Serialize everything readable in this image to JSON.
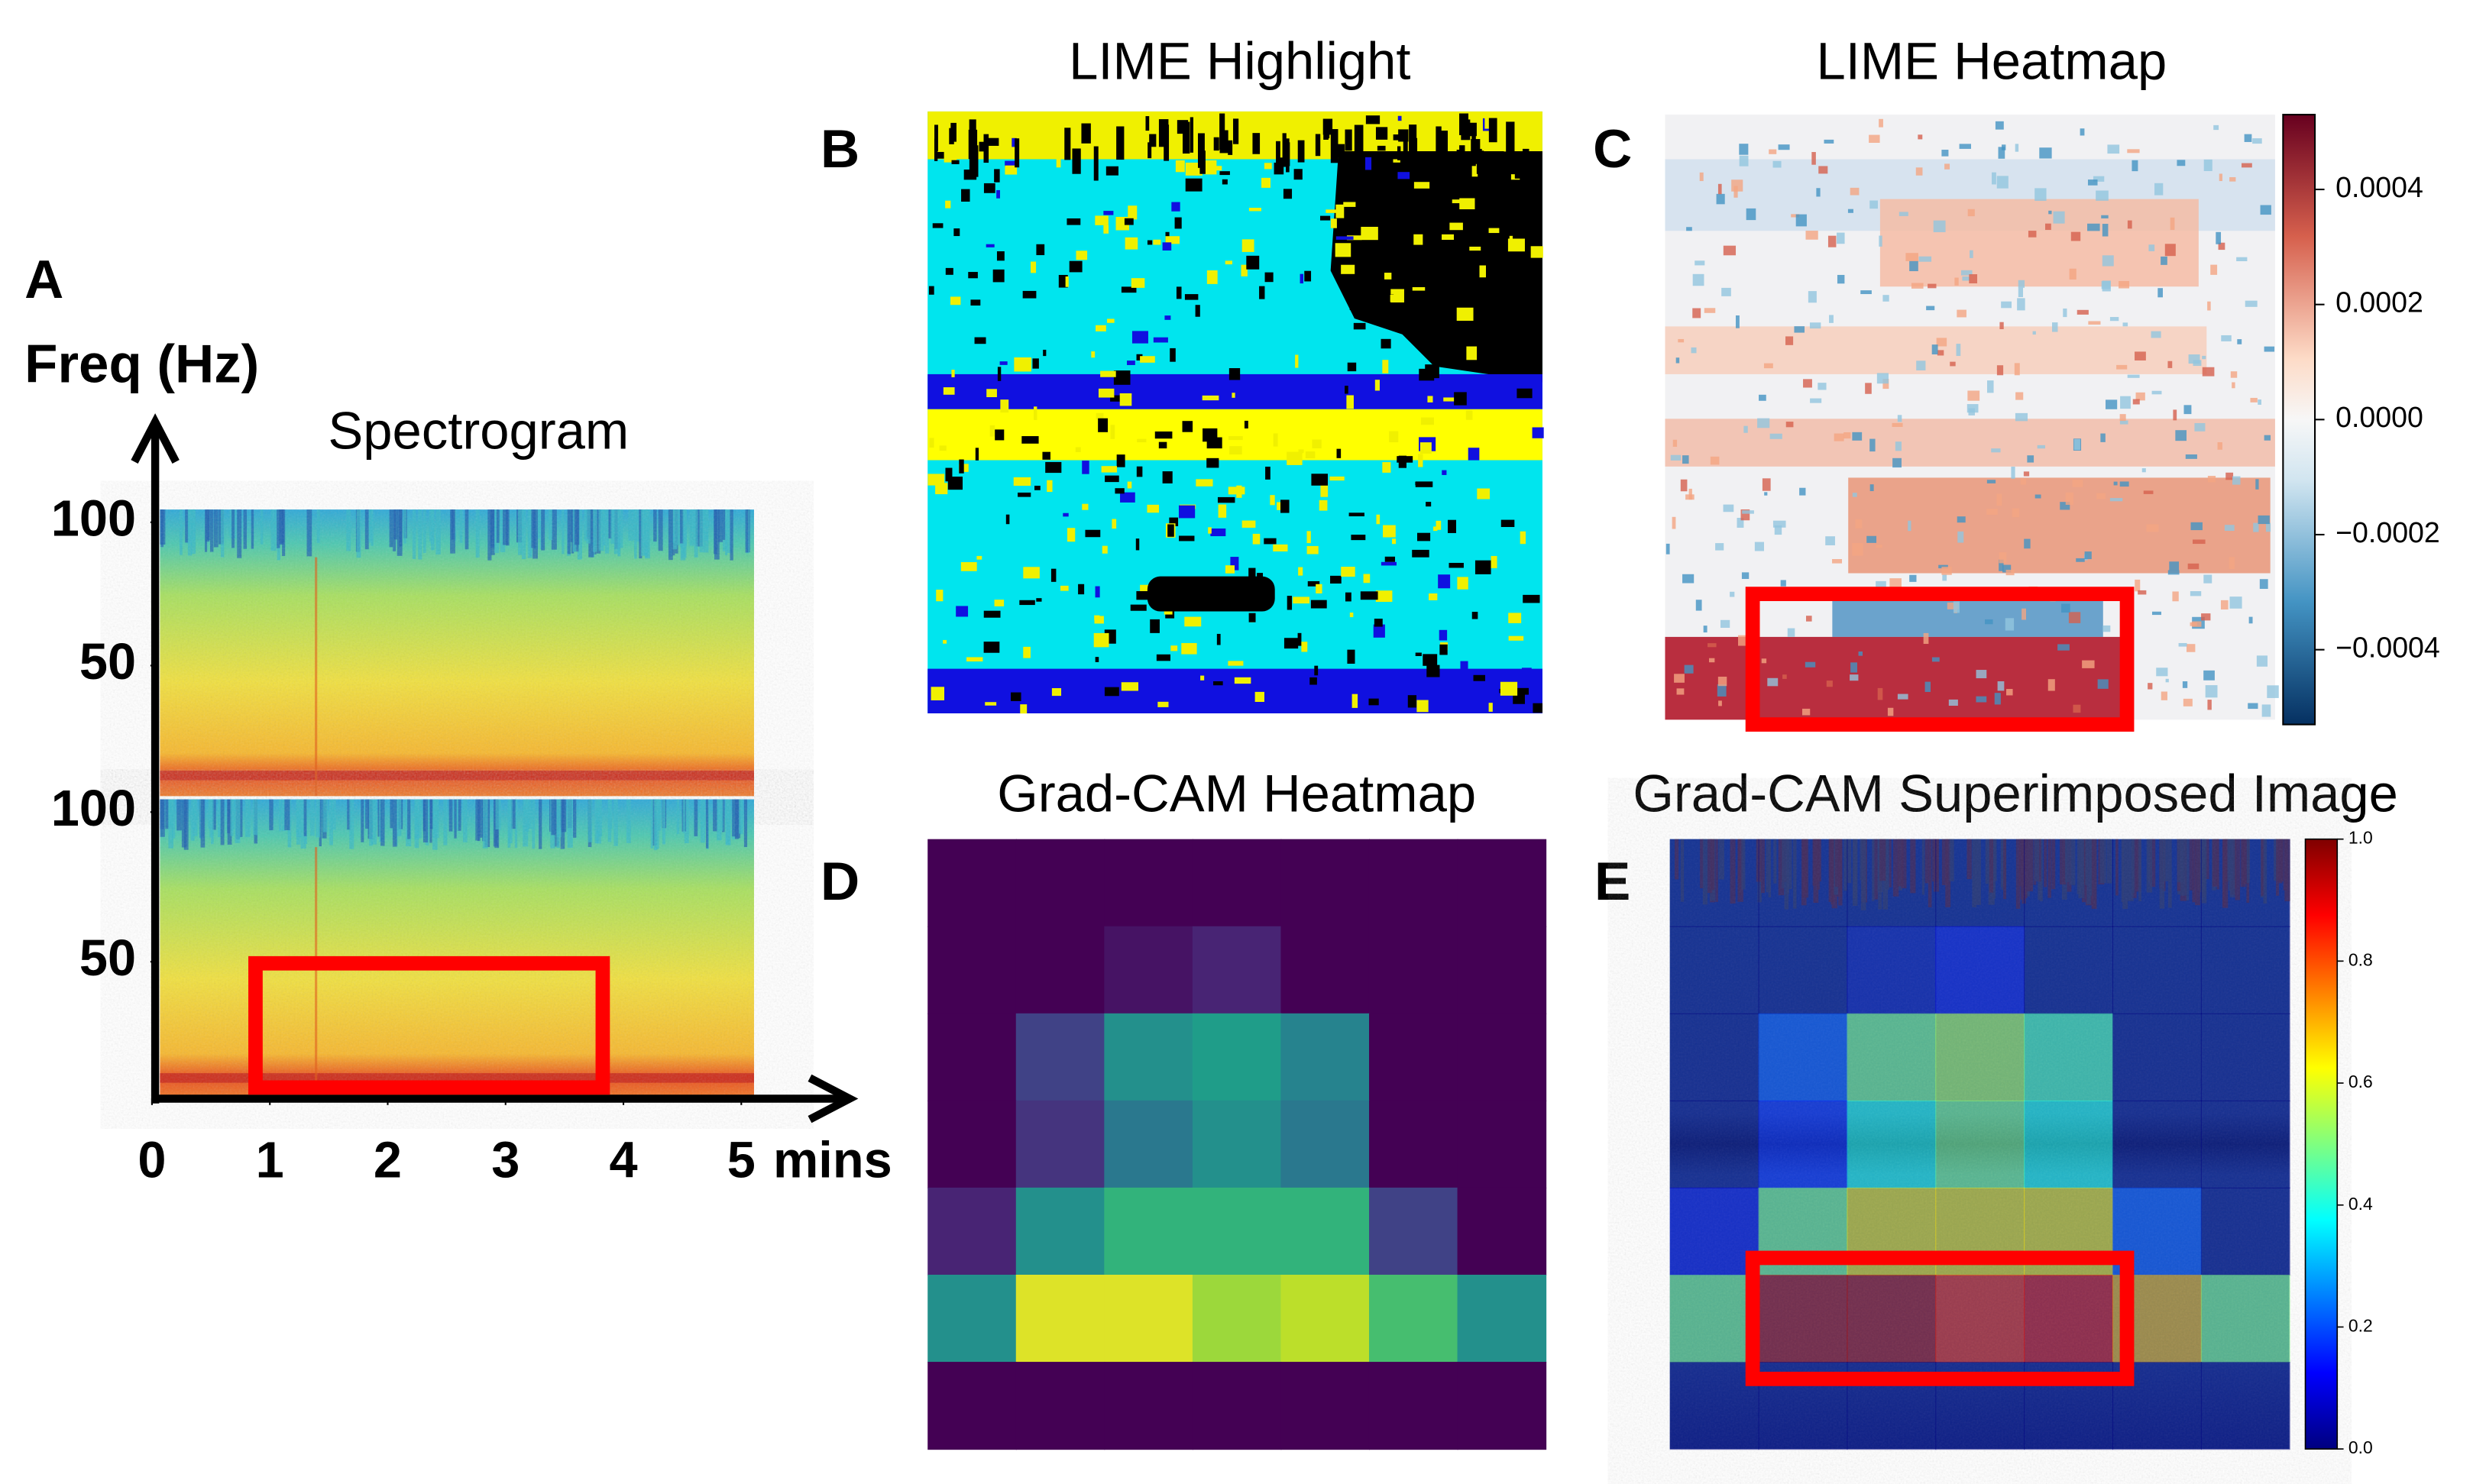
{
  "panels": [
    {
      "label": "A",
      "title": "Spectrogram",
      "y_label": "Freq (Hz)",
      "ylim": [
        0,
        100
      ],
      "yticks_upper": [
        100,
        50
      ],
      "yticks_lower": [
        100,
        50
      ],
      "xlim": [
        0,
        5
      ],
      "xticks": [
        0,
        1,
        2,
        3,
        4,
        5
      ],
      "x_unit": "mins"
    },
    {
      "label": "B",
      "title": "LIME Highlight"
    },
    {
      "label": "C",
      "title": "LIME Heatmap",
      "colorbar_lim": [
        -0.00053,
        0.00053
      ],
      "colorbar_ticks": [
        {
          "value": 0.0004,
          "label": "0.0004"
        },
        {
          "value": 0.0002,
          "label": "0.0002"
        },
        {
          "value": 0,
          "label": "0.0000"
        },
        {
          "value": -0.0002,
          "label": "−0.0002"
        },
        {
          "value": -0.0004,
          "label": "−0.0004"
        }
      ]
    },
    {
      "label": "D",
      "title": "Grad-CAM Heatmap",
      "colormap": "viridis",
      "grid": [
        [
          0,
          0,
          0,
          0,
          0,
          0,
          0
        ],
        [
          0,
          0,
          0.05,
          0.1,
          0,
          0,
          0
        ],
        [
          0,
          0.2,
          0.5,
          0.55,
          0.45,
          0,
          0
        ],
        [
          0,
          0.15,
          0.4,
          0.5,
          0.4,
          0,
          0
        ],
        [
          0.1,
          0.5,
          0.65,
          0.65,
          0.65,
          0.2,
          0
        ],
        [
          0.5,
          0.95,
          0.95,
          0.85,
          0.9,
          0.7,
          0.5
        ],
        [
          0,
          0,
          0,
          0,
          0,
          0,
          0
        ]
      ]
    },
    {
      "label": "E",
      "title": "Grad-CAM Superimposed Image",
      "colormap": "jet",
      "colorbar_lim": [
        0,
        1
      ],
      "colorbar_ticks": [
        {
          "value": 0,
          "label": "0.0"
        },
        0.2,
        0.4,
        0.6,
        0.8,
        {
          "value": 1,
          "label": "1.0"
        }
      ]
    }
  ]
}
